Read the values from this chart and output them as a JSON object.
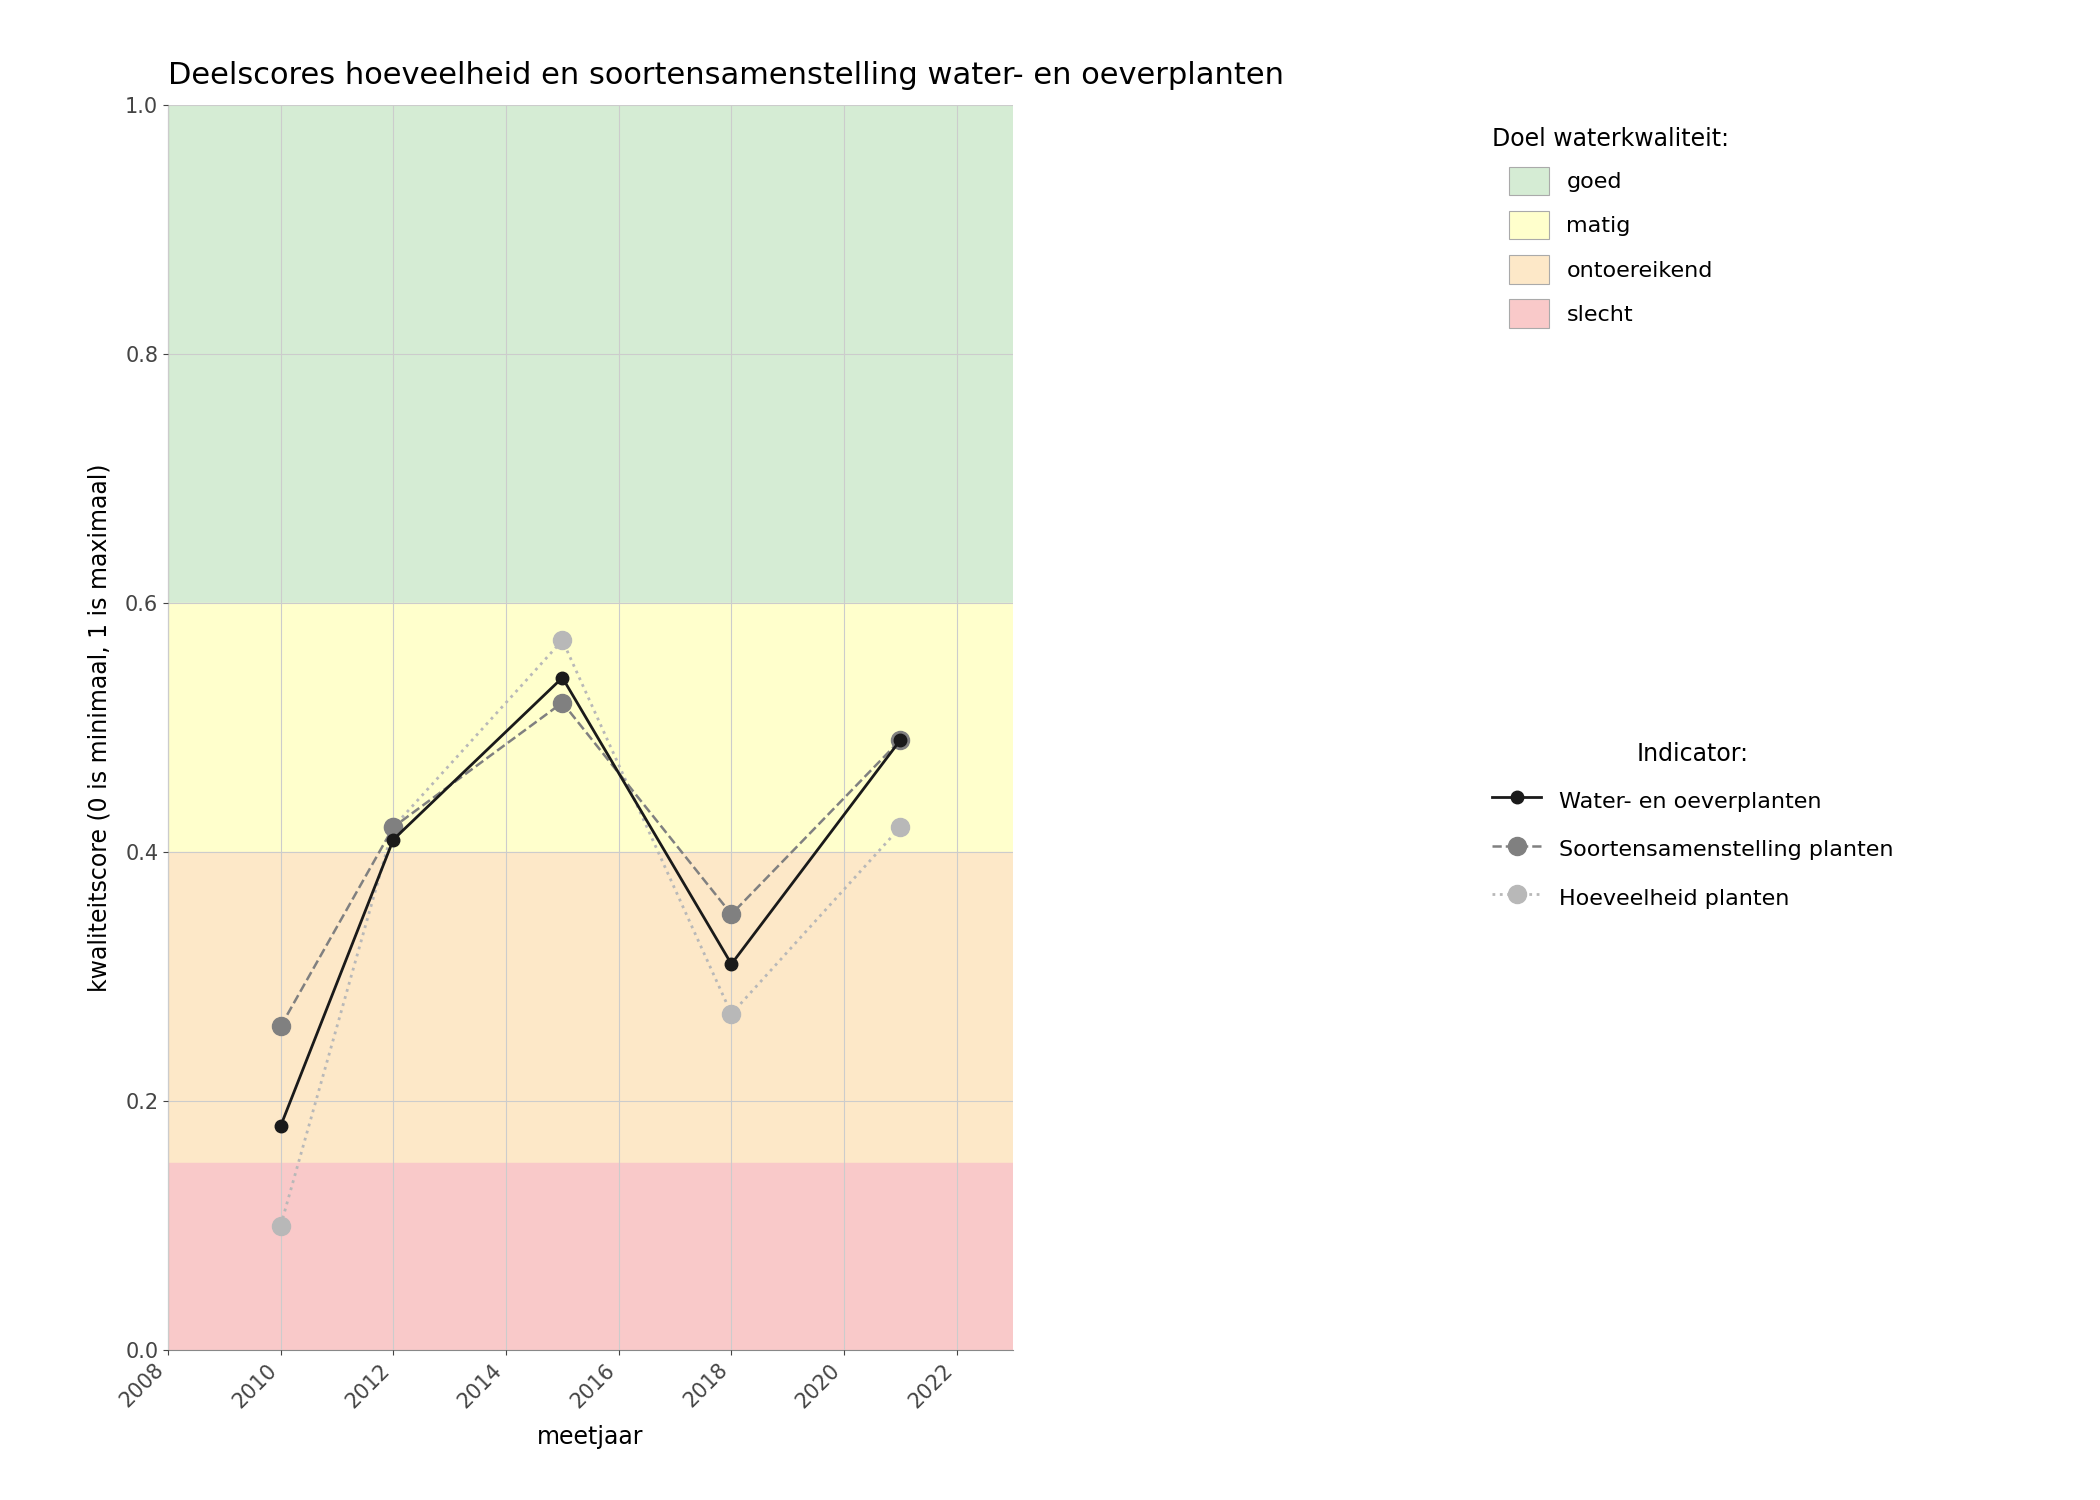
{
  "title": "Deelscores hoeveelheid en soortensamenstelling water- en oeverplanten",
  "xlabel": "meetjaar",
  "ylabel": "kwaliteitscore (0 is minimaal, 1 is maximaal)",
  "xlim": [
    2008,
    2023
  ],
  "ylim": [
    0.0,
    1.0
  ],
  "xticks": [
    2008,
    2010,
    2012,
    2014,
    2016,
    2018,
    2020,
    2022
  ],
  "yticks": [
    0.0,
    0.2,
    0.4,
    0.6,
    0.8,
    1.0
  ],
  "background_color": "#ffffff",
  "zones": [
    {
      "ymin": 0.6,
      "ymax": 1.0,
      "color": "#d5ecd4",
      "label": "goed"
    },
    {
      "ymin": 0.4,
      "ymax": 0.6,
      "color": "#ffffcc",
      "label": "matig"
    },
    {
      "ymin": 0.15,
      "ymax": 0.4,
      "color": "#fde8c8",
      "label": "ontoereikend"
    },
    {
      "ymin": 0.0,
      "ymax": 0.15,
      "color": "#f9c9c9",
      "label": "slecht"
    }
  ],
  "series": [
    {
      "name": "Water- en oeverplanten",
      "years": [
        2010,
        2012,
        2015,
        2018,
        2021
      ],
      "values": [
        0.18,
        0.41,
        0.54,
        0.31,
        0.49
      ],
      "color": "#1a1a1a",
      "linestyle": "solid",
      "linewidth": 2.0,
      "marker": "o",
      "markersize": 9,
      "markerfacecolor": "#1a1a1a",
      "markeredgecolor": "#1a1a1a",
      "zorder": 5
    },
    {
      "name": "Soortensamenstelling planten",
      "years": [
        2010,
        2012,
        2015,
        2018,
        2021
      ],
      "values": [
        0.26,
        0.42,
        0.52,
        0.35,
        0.49
      ],
      "color": "#808080",
      "linestyle": "dashed",
      "linewidth": 1.8,
      "marker": "o",
      "markersize": 13,
      "markerfacecolor": "#808080",
      "markeredgecolor": "#808080",
      "zorder": 4
    },
    {
      "name": "Hoeveelheid planten",
      "years": [
        2010,
        2012,
        2015,
        2018,
        2021
      ],
      "values": [
        0.1,
        0.42,
        0.57,
        0.27,
        0.42
      ],
      "color": "#b8b8b8",
      "linestyle": "dotted",
      "linewidth": 2.0,
      "marker": "o",
      "markersize": 13,
      "markerfacecolor": "#b8b8b8",
      "markeredgecolor": "#b8b8b8",
      "zorder": 3
    }
  ],
  "legend_title_quality": "Doel waterkwaliteit:",
  "legend_title_indicator": "Indicator:",
  "zone_legend_colors": [
    "#d5ecd4",
    "#ffffcc",
    "#fde8c8",
    "#f9c9c9"
  ],
  "zone_legend_labels": [
    "goed",
    "matig",
    "ontoereikend",
    "slecht"
  ],
  "grid_color": "#cccccc",
  "title_fontsize": 22,
  "label_fontsize": 17,
  "tick_fontsize": 15,
  "legend_fontsize": 16
}
